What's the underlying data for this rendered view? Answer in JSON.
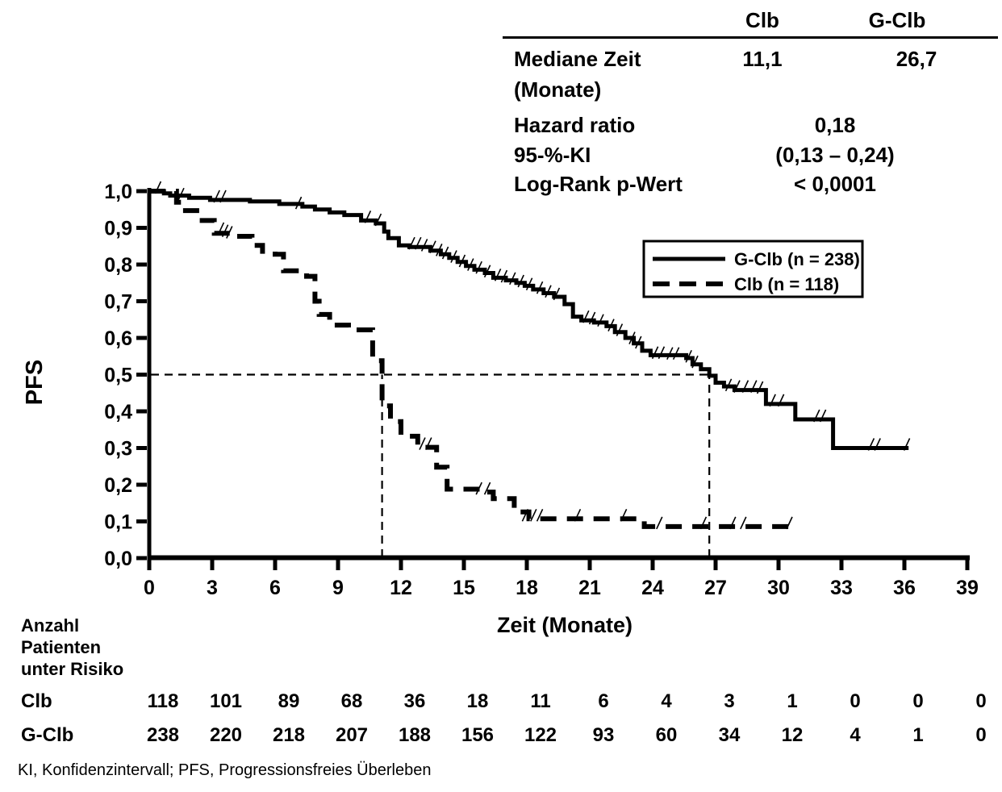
{
  "stats_table_note": "summary statistics shown top-right of plot",
  "chart_data": {
    "type": "line",
    "subtype": "kaplan_meier_step",
    "title": "",
    "xlabel": "Zeit (Monate)",
    "ylabel": "PFS",
    "xlim": [
      0,
      39
    ],
    "ylim": [
      0.0,
      1.0
    ],
    "grid": false,
    "colors": {
      "foreground": "#000000",
      "background": "#ffffff"
    },
    "x_ticks": [
      0,
      3,
      6,
      9,
      12,
      15,
      18,
      21,
      24,
      27,
      30,
      33,
      36,
      39
    ],
    "x_tick_labels": [
      "0",
      "3",
      "6",
      "9",
      "12",
      "15",
      "18",
      "21",
      "24",
      "27",
      "30",
      "33",
      "36",
      "39"
    ],
    "y_ticks": [
      0,
      0.1,
      0.2,
      0.3,
      0.4,
      0.5,
      0.6,
      0.7,
      0.8,
      0.9,
      1.0
    ],
    "y_tick_labels": [
      "0,0",
      "0,1",
      "0,2",
      "0,3",
      "0,4",
      "0,5",
      "0,6",
      "0,7",
      "0,8",
      "0,9",
      "1,0"
    ],
    "legend": {
      "position": "inside-right",
      "entries": [
        {
          "label": "G-Clb (n = 238)",
          "style": "solid"
        },
        {
          "label": "Clb (n = 118)",
          "style": "dashed"
        }
      ]
    },
    "reference_lines": {
      "pfs_level": 0.5,
      "median_clb": 11.1,
      "median_gclb": 26.7
    },
    "stats": {
      "col_clb": "Clb",
      "col_gclb": "G-Clb",
      "median_label_1": "Mediane Zeit",
      "median_label_2": "(Monate)",
      "median_clb": "11,1",
      "median_gclb": "26,7",
      "hr_label": "Hazard ratio",
      "hr_value": "0,18",
      "ci_label": "95-%-KI",
      "ci_value": "(0,13 – 0,24)",
      "p_label": "Log-Rank p-Wert",
      "p_value": "< 0,0001"
    },
    "series": [
      {
        "name": "G-Clb",
        "n": 238,
        "style": "solid",
        "median_months": 26.7,
        "points": [
          [
            0,
            1
          ],
          [
            0.7,
            0.994
          ],
          [
            1.0,
            0.988
          ],
          [
            1.9,
            0.982
          ],
          [
            2.9,
            0.976
          ],
          [
            4.8,
            0.972
          ],
          [
            6.2,
            0.965
          ],
          [
            7.3,
            0.958
          ],
          [
            7.9,
            0.95
          ],
          [
            8.6,
            0.942
          ],
          [
            9.3,
            0.935
          ],
          [
            10.1,
            0.92
          ],
          [
            10.8,
            0.912
          ],
          [
            11.2,
            0.89
          ],
          [
            11.4,
            0.872
          ],
          [
            11.9,
            0.852
          ],
          [
            12.4,
            0.848
          ],
          [
            13.4,
            0.838
          ],
          [
            13.9,
            0.828
          ],
          [
            14.3,
            0.818
          ],
          [
            14.7,
            0.807
          ],
          [
            15.1,
            0.796
          ],
          [
            15.5,
            0.786
          ],
          [
            16.0,
            0.777
          ],
          [
            16.4,
            0.764
          ],
          [
            17.0,
            0.757
          ],
          [
            17.5,
            0.75
          ],
          [
            17.9,
            0.742
          ],
          [
            18.3,
            0.732
          ],
          [
            18.8,
            0.722
          ],
          [
            19.3,
            0.712
          ],
          [
            19.8,
            0.692
          ],
          [
            20.2,
            0.658
          ],
          [
            20.6,
            0.648
          ],
          [
            21.2,
            0.642
          ],
          [
            21.8,
            0.632
          ],
          [
            22.2,
            0.616
          ],
          [
            22.7,
            0.6
          ],
          [
            23.1,
            0.585
          ],
          [
            23.5,
            0.565
          ],
          [
            23.9,
            0.553
          ],
          [
            25.6,
            0.545
          ],
          [
            25.9,
            0.528
          ],
          [
            26.3,
            0.515
          ],
          [
            26.7,
            0.497
          ],
          [
            27.0,
            0.478
          ],
          [
            27.4,
            0.468
          ],
          [
            27.9,
            0.458
          ],
          [
            29.4,
            0.42
          ],
          [
            30.8,
            0.378
          ],
          [
            32.6,
            0.3
          ],
          [
            36.2,
            0.3
          ]
        ],
        "censor_marks": [
          [
            0.4,
            1.0
          ],
          [
            1.5,
            0.982
          ],
          [
            3.2,
            0.976
          ],
          [
            3.5,
            0.976
          ],
          [
            7.1,
            0.958
          ],
          [
            10.4,
            0.92
          ],
          [
            10.9,
            0.912
          ],
          [
            12.5,
            0.848
          ],
          [
            12.8,
            0.848
          ],
          [
            13.1,
            0.843
          ],
          [
            13.5,
            0.838
          ],
          [
            13.8,
            0.83
          ],
          [
            14.1,
            0.822
          ],
          [
            14.5,
            0.812
          ],
          [
            14.9,
            0.8
          ],
          [
            15.3,
            0.79
          ],
          [
            15.7,
            0.782
          ],
          [
            16.1,
            0.772
          ],
          [
            16.6,
            0.762
          ],
          [
            16.9,
            0.758
          ],
          [
            17.3,
            0.752
          ],
          [
            17.7,
            0.745
          ],
          [
            18.1,
            0.737
          ],
          [
            18.6,
            0.727
          ],
          [
            19.0,
            0.717
          ],
          [
            19.4,
            0.71
          ],
          [
            20.8,
            0.648
          ],
          [
            21.1,
            0.644
          ],
          [
            21.5,
            0.638
          ],
          [
            22.0,
            0.625
          ],
          [
            22.4,
            0.612
          ],
          [
            23.0,
            0.59
          ],
          [
            23.3,
            0.578
          ],
          [
            24.1,
            0.55
          ],
          [
            24.4,
            0.55
          ],
          [
            24.8,
            0.548
          ],
          [
            25.1,
            0.548
          ],
          [
            25.7,
            0.54
          ],
          [
            26.0,
            0.525
          ],
          [
            27.6,
            0.462
          ],
          [
            28.0,
            0.458
          ],
          [
            28.4,
            0.458
          ],
          [
            28.8,
            0.458
          ],
          [
            29.1,
            0.455
          ],
          [
            29.7,
            0.42
          ],
          [
            30.1,
            0.42
          ],
          [
            31.8,
            0.378
          ],
          [
            32.1,
            0.378
          ],
          [
            34.4,
            0.3
          ],
          [
            34.7,
            0.3
          ],
          [
            36.1,
            0.3
          ]
        ]
      },
      {
        "name": "Clb",
        "n": 118,
        "style": "dashed",
        "median_months": 11.1,
        "points": [
          [
            0,
            1
          ],
          [
            1.3,
            0.97
          ],
          [
            1.6,
            0.947
          ],
          [
            2.4,
            0.92
          ],
          [
            3.1,
            0.885
          ],
          [
            4.0,
            0.877
          ],
          [
            4.9,
            0.852
          ],
          [
            5.4,
            0.836
          ],
          [
            6.0,
            0.828
          ],
          [
            6.4,
            0.783
          ],
          [
            7.5,
            0.768
          ],
          [
            7.9,
            0.7
          ],
          [
            8.1,
            0.664
          ],
          [
            8.6,
            0.635
          ],
          [
            9.5,
            0.622
          ],
          [
            10.65,
            0.538
          ],
          [
            11.1,
            0.415
          ],
          [
            11.5,
            0.372
          ],
          [
            12.0,
            0.332
          ],
          [
            12.8,
            0.302
          ],
          [
            13.7,
            0.248
          ],
          [
            14.2,
            0.188
          ],
          [
            15.8,
            0.18
          ],
          [
            16.4,
            0.162
          ],
          [
            17.4,
            0.126
          ],
          [
            18.1,
            0.107
          ],
          [
            23.6,
            0.086
          ],
          [
            30.5,
            0.086
          ]
        ],
        "censor_marks": [
          [
            3.4,
            0.888
          ],
          [
            3.6,
            0.882
          ],
          [
            3.8,
            0.878
          ],
          [
            13.0,
            0.302
          ],
          [
            13.3,
            0.302
          ],
          [
            15.7,
            0.18
          ],
          [
            16.1,
            0.18
          ],
          [
            17.9,
            0.107
          ],
          [
            18.3,
            0.107
          ],
          [
            18.6,
            0.107
          ],
          [
            20.4,
            0.107
          ],
          [
            22.6,
            0.107
          ],
          [
            24.3,
            0.086
          ],
          [
            26.4,
            0.086
          ],
          [
            27.8,
            0.086
          ],
          [
            28.3,
            0.086
          ],
          [
            30.5,
            0.086
          ]
        ]
      }
    ]
  },
  "risk_table": {
    "header_lines": [
      "Anzahl",
      "Patienten",
      "unter Risiko"
    ],
    "times": [
      0,
      3,
      6,
      9,
      12,
      15,
      18,
      21,
      24,
      27,
      30,
      33,
      36,
      39
    ],
    "rows": [
      {
        "label": "Clb",
        "values": [
          118,
          101,
          89,
          68,
          36,
          18,
          11,
          6,
          4,
          3,
          1,
          0,
          0,
          0
        ]
      },
      {
        "label": "G-Clb",
        "values": [
          238,
          220,
          218,
          207,
          188,
          156,
          122,
          93,
          60,
          34,
          12,
          4,
          1,
          0
        ]
      }
    ]
  },
  "footnote": "KI, Konfidenzintervall; PFS, Progressionsfreies Überleben"
}
